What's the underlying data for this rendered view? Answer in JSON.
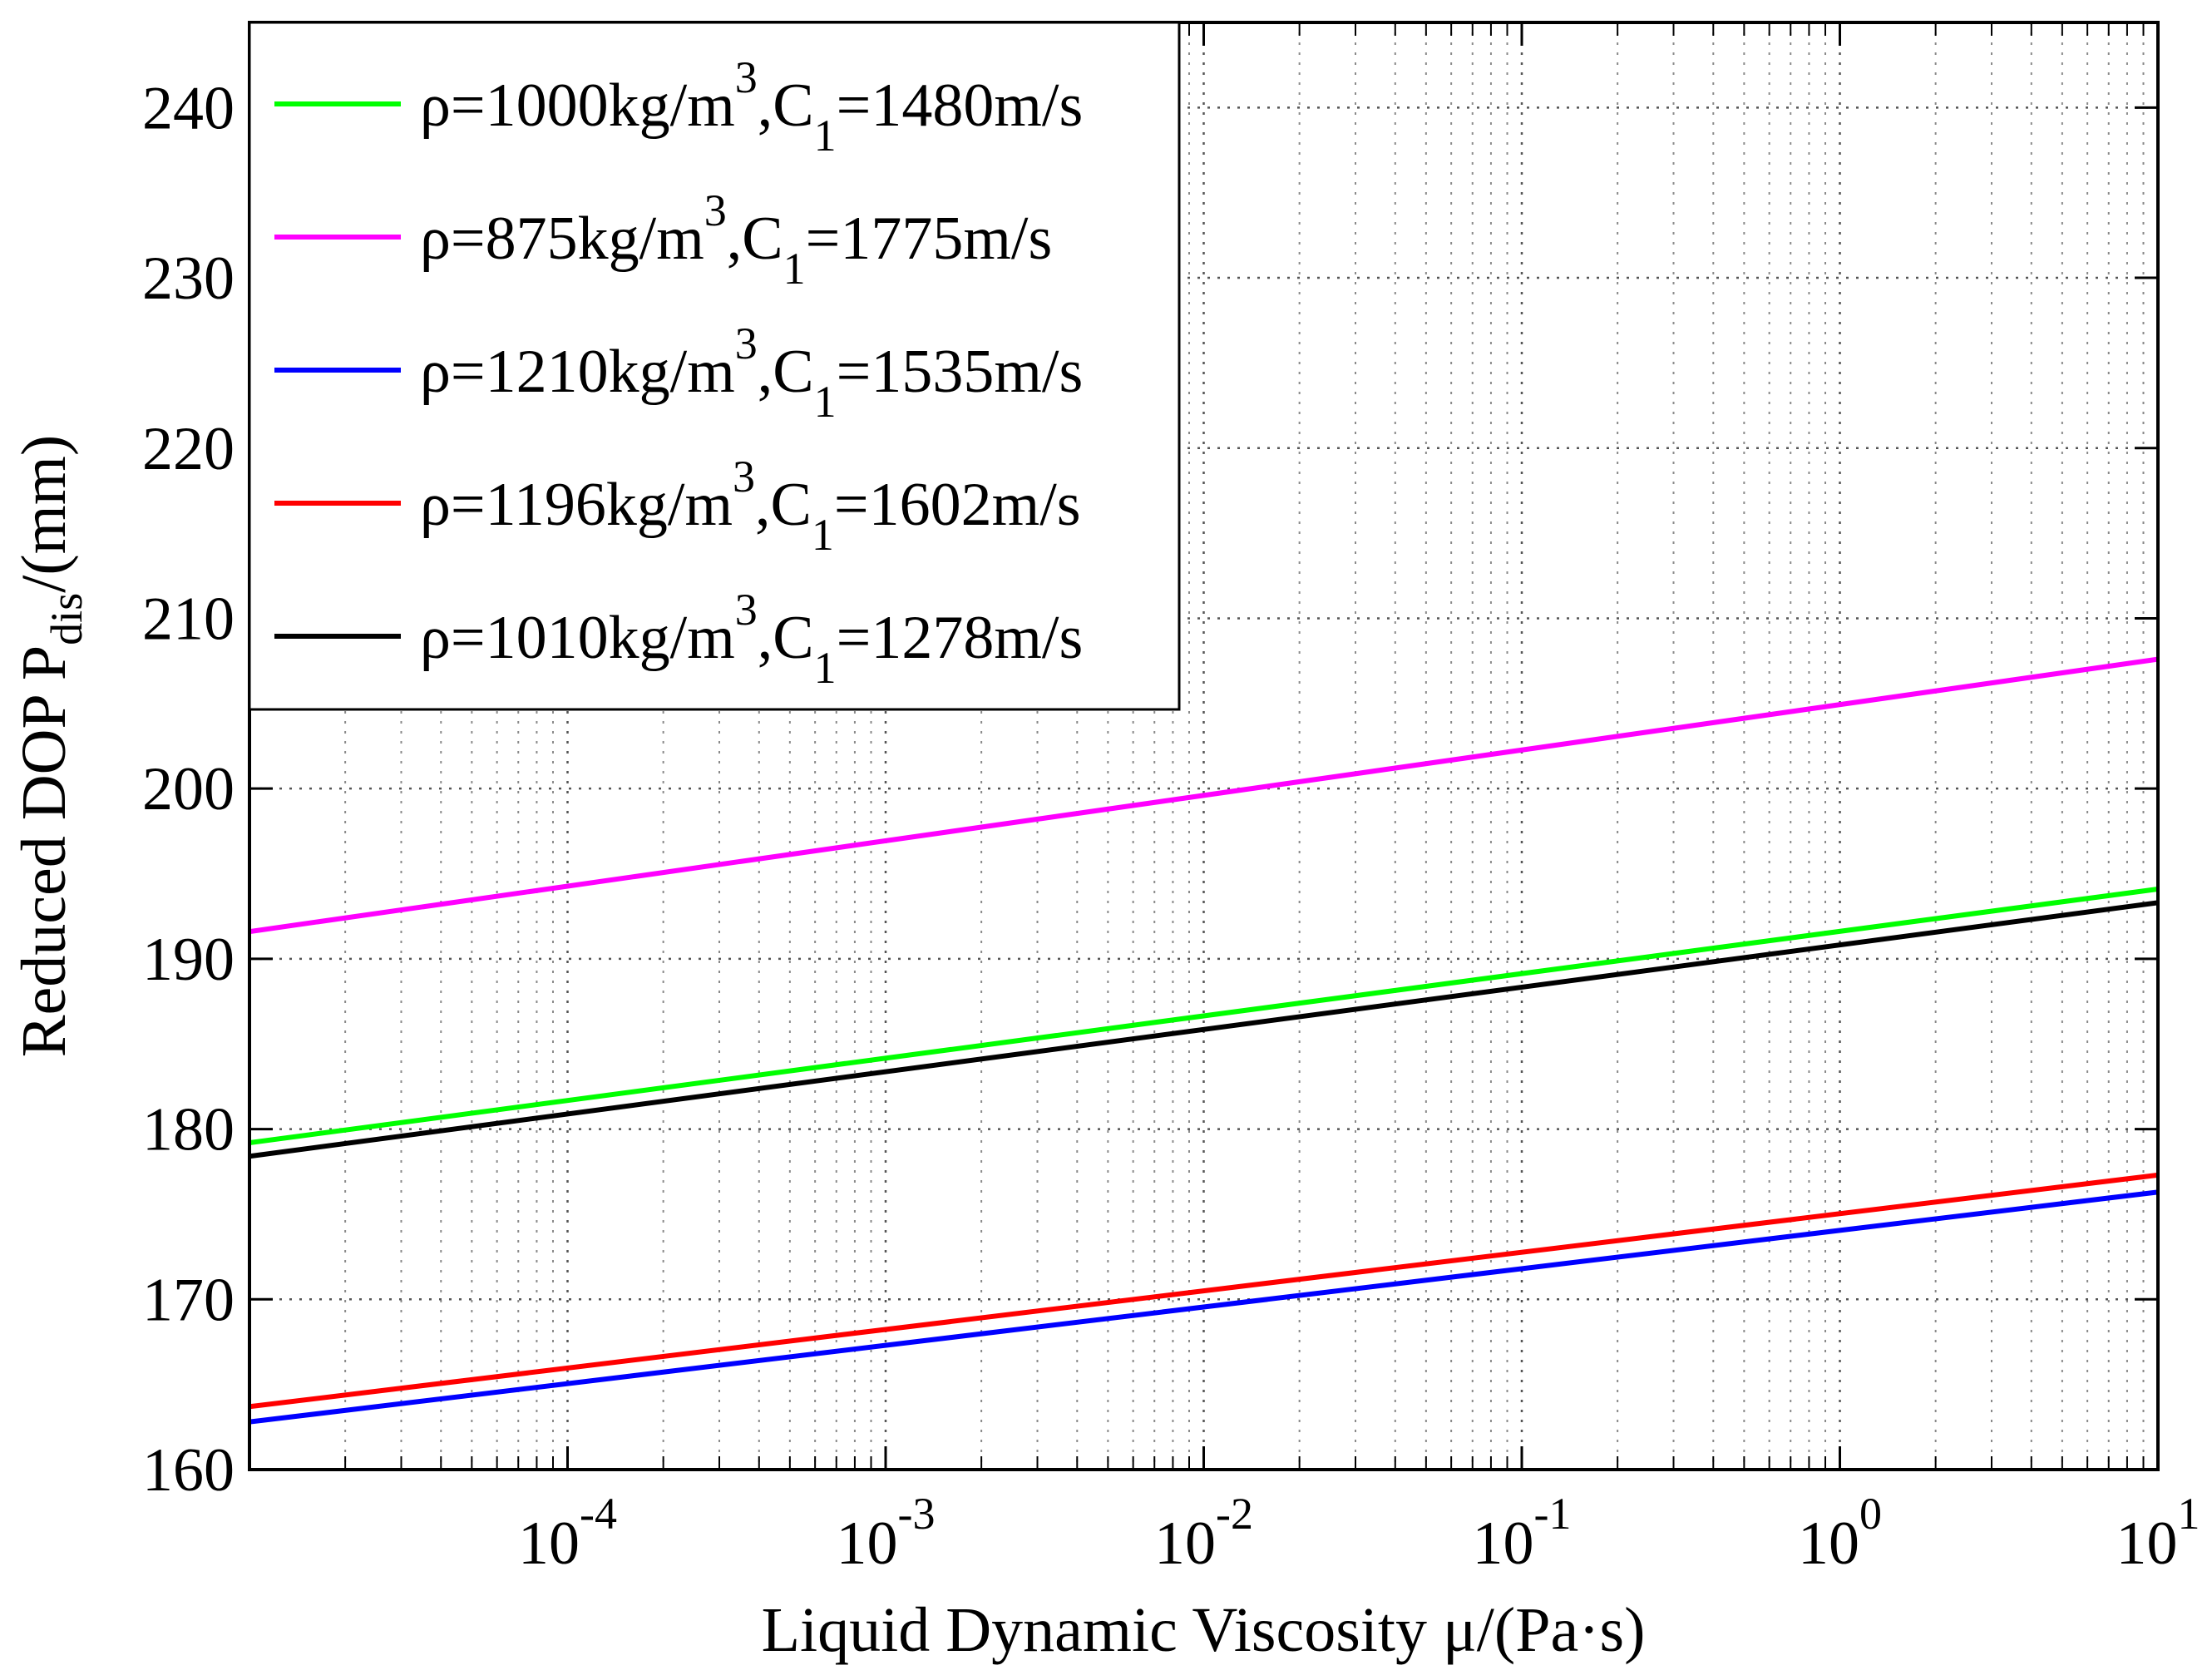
{
  "chart_data": {
    "type": "line",
    "x_scale": "log",
    "xlabel": "Liquid Dynamic Viscosity μ/(Pa·s)",
    "ylabel": {
      "main": "Reduced DOP P",
      "sub": "dis",
      "tail": "/(mm)"
    },
    "xlim": [
      1e-05,
      10
    ],
    "ylim": [
      160,
      245
    ],
    "grid": true,
    "legend_position": "top-left",
    "x_ticks": [
      {
        "value": 0.0001,
        "base": "10",
        "exp": "-4"
      },
      {
        "value": 0.001,
        "base": "10",
        "exp": "-3"
      },
      {
        "value": 0.01,
        "base": "10",
        "exp": "-2"
      },
      {
        "value": 0.1,
        "base": "10",
        "exp": "-1"
      },
      {
        "value": 1,
        "base": "10",
        "exp": "0"
      },
      {
        "value": 10,
        "base": "10",
        "exp": "1"
      }
    ],
    "y_ticks": [
      160,
      170,
      180,
      190,
      200,
      210,
      220,
      230,
      240
    ],
    "series": [
      {
        "name": "ρ=1000kg/m3,C1=1480m/s",
        "rho": "1000",
        "c": "1480",
        "color": "#00ff00",
        "x": [
          1e-05,
          10
        ],
        "y": [
          179.2,
          194.1
        ]
      },
      {
        "name": "ρ=875kg/m3,C1=1775m/s",
        "rho": "875",
        "c": "1775",
        "color": "#ff00ff",
        "x": [
          1e-05,
          10
        ],
        "y": [
          191.6,
          207.6
        ]
      },
      {
        "name": "ρ=1210kg/m3,C1=1535m/s",
        "rho": "1210",
        "c": "1535",
        "color": "#0000ff",
        "x": [
          1e-05,
          10
        ],
        "y": [
          162.8,
          176.3
        ]
      },
      {
        "name": "ρ=1196kg/m3,C1=1602m/s",
        "rho": "1196",
        "c": "1602",
        "color": "#ff0000",
        "x": [
          1e-05,
          10
        ],
        "y": [
          163.7,
          177.3
        ]
      },
      {
        "name": "ρ=1010kg/m3,C1=1278m/s",
        "rho": "1010",
        "c": "1278",
        "color": "#000000",
        "x": [
          1e-05,
          10
        ],
        "y": [
          178.4,
          193.3
        ]
      }
    ]
  }
}
